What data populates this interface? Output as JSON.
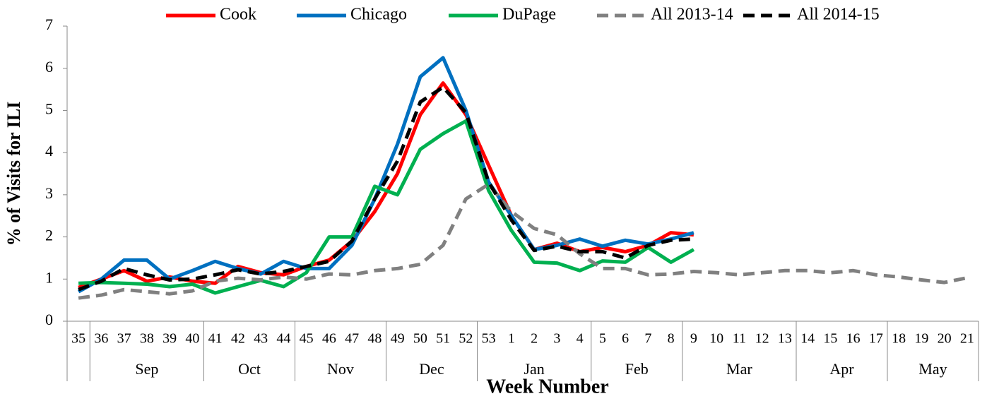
{
  "chart_data": {
    "type": "line",
    "y_label": "% of Visits for ILI",
    "x_label": "Week Number",
    "categories": [
      "35",
      "36",
      "37",
      "38",
      "39",
      "40",
      "41",
      "42",
      "43",
      "44",
      "45",
      "46",
      "47",
      "48",
      "49",
      "50",
      "51",
      "52",
      "53",
      "1",
      "2",
      "3",
      "4",
      "5",
      "6",
      "7",
      "8",
      "9",
      "10",
      "11",
      "12",
      "13",
      "14",
      "15",
      "16",
      "17",
      "18",
      "19",
      "20",
      "21"
    ],
    "category_groups": [
      {
        "label": null,
        "span": 1
      },
      {
        "label": "Sep",
        "span": 5
      },
      {
        "label": "Oct",
        "span": 4
      },
      {
        "label": "Nov",
        "span": 4
      },
      {
        "label": "Dec",
        "span": 4
      },
      {
        "label": "Jan",
        "span": 5
      },
      {
        "label": "Feb",
        "span": 4
      },
      {
        "label": "Mar",
        "span": 5
      },
      {
        "label": "Apr",
        "span": 4
      },
      {
        "label": "May",
        "span": 4
      }
    ],
    "ylim": [
      0,
      7
    ],
    "yticks": [
      0,
      1,
      2,
      3,
      4,
      5,
      6,
      7
    ],
    "legend": "top",
    "series": [
      {
        "name": "Cook",
        "color": "#ff0000",
        "dashed": false,
        "values": [
          0.8,
          1.0,
          1.2,
          0.95,
          1.05,
          0.95,
          0.9,
          1.3,
          1.15,
          1.1,
          1.3,
          1.45,
          1.9,
          2.6,
          3.5,
          4.9,
          5.65,
          4.9,
          3.7,
          2.5,
          1.7,
          1.85,
          1.65,
          1.75,
          1.65,
          1.8,
          2.1,
          2.05,
          null,
          null,
          null,
          null,
          null,
          null,
          null,
          null,
          null,
          null,
          null,
          null
        ]
      },
      {
        "name": "Chicago",
        "color": "#0070c0",
        "dashed": false,
        "values": [
          0.7,
          1.0,
          1.45,
          1.45,
          1.0,
          1.2,
          1.42,
          1.25,
          1.12,
          1.42,
          1.25,
          1.25,
          1.8,
          2.9,
          4.2,
          5.8,
          6.25,
          5.0,
          3.3,
          2.5,
          1.7,
          1.8,
          1.95,
          1.78,
          1.92,
          1.83,
          1.95,
          2.1,
          null,
          null,
          null,
          null,
          null,
          null,
          null,
          null,
          null,
          null,
          null,
          null
        ]
      },
      {
        "name": "DuPage",
        "color": "#00b050",
        "dashed": false,
        "values": [
          0.9,
          0.92,
          0.9,
          0.88,
          0.82,
          0.88,
          0.67,
          0.82,
          0.97,
          0.82,
          1.15,
          2.0,
          2.0,
          3.2,
          3.0,
          4.08,
          4.45,
          4.75,
          3.1,
          2.15,
          1.4,
          1.38,
          1.2,
          1.43,
          1.4,
          1.75,
          1.4,
          1.7,
          null,
          null,
          null,
          null,
          null,
          null,
          null,
          null,
          null,
          null,
          null,
          null
        ]
      },
      {
        "name": "All 2013-14",
        "color": "#808080",
        "dashed": true,
        "values": [
          0.55,
          0.62,
          0.75,
          0.7,
          0.65,
          0.72,
          0.95,
          1.02,
          0.98,
          1.05,
          1.0,
          1.12,
          1.1,
          1.2,
          1.25,
          1.35,
          1.8,
          2.9,
          3.25,
          2.6,
          2.2,
          2.05,
          1.6,
          1.25,
          1.25,
          1.1,
          1.12,
          1.18,
          1.15,
          1.1,
          1.15,
          1.2,
          1.2,
          1.15,
          1.2,
          1.1,
          1.05,
          0.98,
          0.92,
          1.03
        ]
      },
      {
        "name": "All 2014-15",
        "color": "#000000",
        "dashed": true,
        "values": [
          0.75,
          0.95,
          1.25,
          1.1,
          0.98,
          1.0,
          1.1,
          1.22,
          1.12,
          1.18,
          1.3,
          1.42,
          1.9,
          2.9,
          3.8,
          5.2,
          5.55,
          4.95,
          3.3,
          2.4,
          1.68,
          1.78,
          1.65,
          1.65,
          1.5,
          1.8,
          1.92,
          1.95,
          null,
          null,
          null,
          null,
          null,
          null,
          null,
          null,
          null,
          null,
          null,
          null
        ]
      }
    ]
  }
}
